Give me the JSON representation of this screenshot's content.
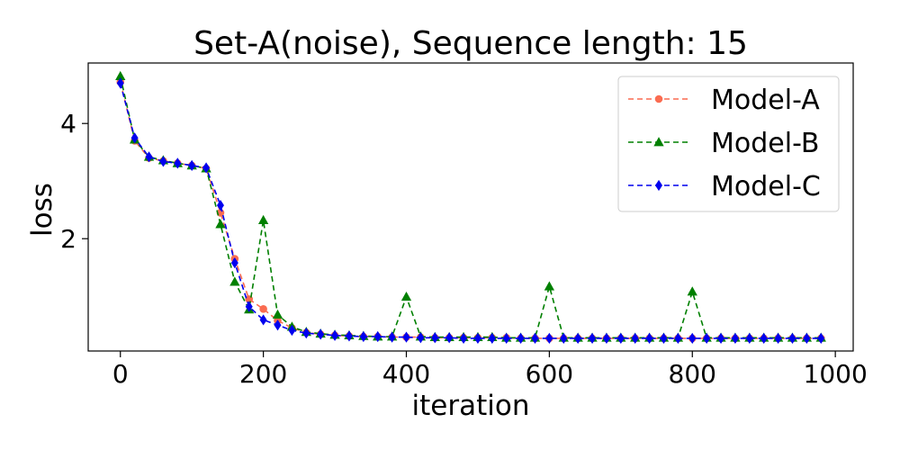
{
  "chart_data": {
    "type": "line",
    "title": "Set-A(noise), Sequence length: 15",
    "xlabel": "iteration",
    "ylabel": "loss",
    "xlim": [
      -45,
      1025
    ],
    "ylim": [
      0.05,
      5.05
    ],
    "xticks": [
      0,
      200,
      400,
      600,
      800,
      1000
    ],
    "yticks": [
      2,
      4
    ],
    "grid": false,
    "legend": "top-right",
    "x": [
      0,
      20,
      40,
      60,
      80,
      100,
      120,
      140,
      160,
      180,
      200,
      220,
      240,
      260,
      280,
      300,
      320,
      340,
      360,
      380,
      400,
      420,
      440,
      460,
      480,
      500,
      520,
      540,
      560,
      580,
      600,
      620,
      640,
      660,
      680,
      700,
      720,
      740,
      760,
      780,
      800,
      820,
      840,
      860,
      880,
      900,
      920,
      940,
      960,
      980
    ],
    "series": [
      {
        "name": "Model-A",
        "color": "#fa6c51",
        "marker": "circle",
        "values": [
          4.72,
          3.7,
          3.4,
          3.35,
          3.31,
          3.27,
          3.22,
          2.45,
          1.65,
          0.95,
          0.78,
          0.58,
          0.45,
          0.37,
          0.34,
          0.32,
          0.31,
          0.3,
          0.3,
          0.29,
          0.29,
          0.29,
          0.28,
          0.28,
          0.28,
          0.28,
          0.28,
          0.28,
          0.27,
          0.27,
          0.27,
          0.27,
          0.27,
          0.27,
          0.27,
          0.27,
          0.27,
          0.27,
          0.27,
          0.27,
          0.27,
          0.27,
          0.27,
          0.27,
          0.27,
          0.27,
          0.27,
          0.27,
          0.27,
          0.27
        ]
      },
      {
        "name": "Model-B",
        "color": "#008000",
        "marker": "triangle",
        "values": [
          4.82,
          3.72,
          3.42,
          3.36,
          3.31,
          3.27,
          3.22,
          2.25,
          1.25,
          0.77,
          2.32,
          0.68,
          0.47,
          0.38,
          0.35,
          0.33,
          0.32,
          0.31,
          0.3,
          0.3,
          0.99,
          0.3,
          0.29,
          0.29,
          0.29,
          0.29,
          0.29,
          0.28,
          0.28,
          0.28,
          1.17,
          0.28,
          0.28,
          0.28,
          0.28,
          0.28,
          0.28,
          0.28,
          0.28,
          0.28,
          1.08,
          0.28,
          0.28,
          0.28,
          0.28,
          0.28,
          0.28,
          0.28,
          0.28,
          0.28
        ]
      },
      {
        "name": "Model-C",
        "color": "#0000ee",
        "marker": "diamond",
        "values": [
          4.7,
          3.75,
          3.42,
          3.34,
          3.31,
          3.27,
          3.23,
          2.58,
          1.58,
          0.82,
          0.59,
          0.5,
          0.41,
          0.36,
          0.34,
          0.32,
          0.31,
          0.3,
          0.3,
          0.29,
          0.29,
          0.28,
          0.28,
          0.28,
          0.27,
          0.27,
          0.27,
          0.27,
          0.27,
          0.27,
          0.27,
          0.27,
          0.27,
          0.27,
          0.27,
          0.27,
          0.27,
          0.27,
          0.27,
          0.27,
          0.27,
          0.27,
          0.27,
          0.27,
          0.27,
          0.27,
          0.27,
          0.27,
          0.27,
          0.27
        ]
      }
    ]
  }
}
